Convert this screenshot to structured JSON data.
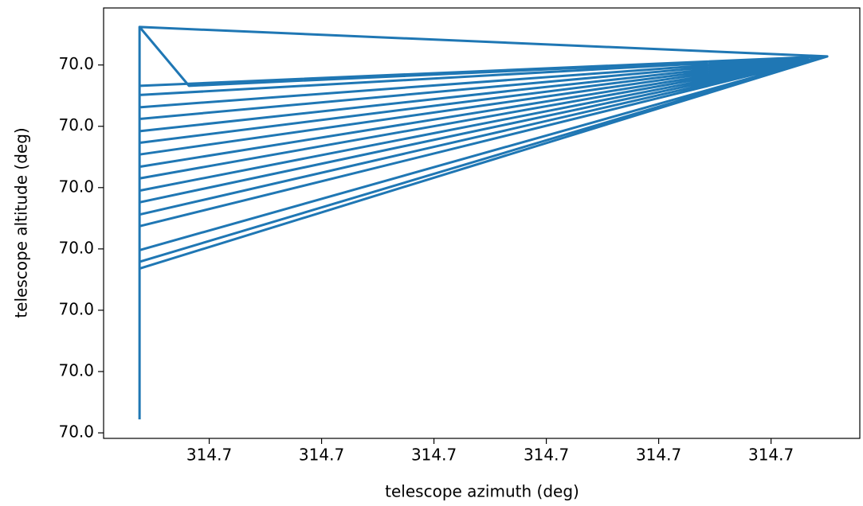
{
  "chart_data": {
    "type": "line",
    "xlabel": "telescope azimuth (deg)",
    "ylabel": "telescope altitude (deg)",
    "series": [
      {
        "color": "#1f77b4",
        "x": [
          314.7000038,
          314.7000038,
          314.700065,
          314.7000038,
          314.700065,
          314.7000038,
          314.700065,
          314.7000038,
          314.700065,
          314.7000038,
          314.700065,
          314.7000038,
          314.700065,
          314.7000038,
          314.700065,
          314.7000038,
          314.700065,
          314.7000038,
          314.700065,
          314.7000038,
          314.700065,
          314.7000038,
          314.700065,
          314.7000038,
          314.700065,
          314.7000038,
          314.700065,
          314.7000038,
          314.700065,
          314.7000038,
          314.700065,
          314.7000038,
          314.700065,
          314.7000038,
          314.7000082,
          314.700065,
          314.7000038,
          314.700065
        ],
        "values": [
          69.9999422,
          70.0000062,
          70.0000014,
          69.9999966,
          70.0000014,
          69.9999668,
          70.0000014,
          69.9999931,
          70.0000014,
          69.9999756,
          70.0000014,
          69.9999892,
          70.0000014,
          69.9999698,
          70.0000014,
          69.9999854,
          70.0000014,
          69.9999795,
          70.0000014,
          69.9999951,
          70.0000014,
          69.9999737,
          70.0000014,
          69.9999815,
          70.0000014,
          69.9999679,
          70.0000014,
          69.9999873,
          70.0000014,
          69.9999776,
          70.0000014,
          69.9999912,
          70.0000014,
          70.0000062,
          69.9999966,
          70.0000014,
          69.9999834,
          70.0000014
        ]
      }
    ],
    "xlim": [
      314.7000006,
      314.7000679
    ],
    "ylim": [
      69.9999391,
      70.0000093
    ],
    "xticks": [
      {
        "value": 314.70001,
        "label": "314.7"
      },
      {
        "value": 314.70002,
        "label": "314.7"
      },
      {
        "value": 314.70003,
        "label": "314.7"
      },
      {
        "value": 314.70004,
        "label": "314.7"
      },
      {
        "value": 314.70005,
        "label": "314.7"
      },
      {
        "value": 314.70006,
        "label": "314.7"
      }
    ],
    "yticks": [
      {
        "value": 69.99994,
        "label": "70.0"
      },
      {
        "value": 69.99995,
        "label": "70.0"
      },
      {
        "value": 69.99996,
        "label": "70.0"
      },
      {
        "value": 69.99997,
        "label": "70.0"
      },
      {
        "value": 69.99998,
        "label": "70.0"
      },
      {
        "value": 69.99999,
        "label": "70.0"
      },
      {
        "value": 70.0,
        "label": "70.0"
      }
    ]
  }
}
